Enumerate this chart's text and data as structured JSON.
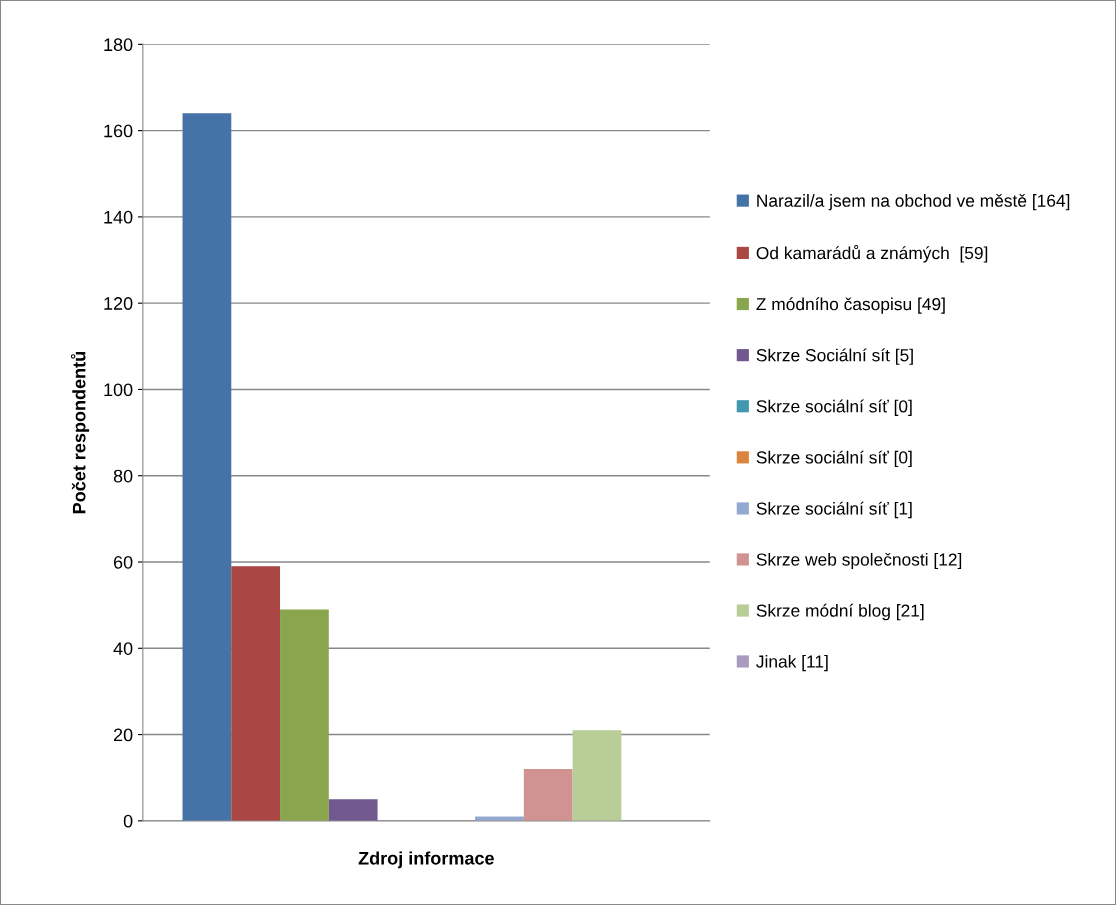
{
  "chart_data": {
    "type": "bar",
    "xlabel": "Zdroj informace",
    "ylabel": "Počet respondentů",
    "categories": [
      null
    ],
    "series": [
      {
        "name": "Narazil/a jsem na obchod ve městě [164]",
        "color": "#4572a7",
        "values": [
          164
        ]
      },
      {
        "name": "Od kamarádů a známých  [59]",
        "color": "#aa4643",
        "values": [
          59
        ]
      },
      {
        "name": "Z módního časopisu [49]",
        "color": "#89a54e",
        "values": [
          49
        ]
      },
      {
        "name": "Skrze Sociální sít [5]",
        "color": "#71588f",
        "values": [
          5
        ]
      },
      {
        "name": "Skrze sociální síť [0]",
        "color": "#4198af",
        "values": [
          0
        ]
      },
      {
        "name": "Skrze sociální síť [0]",
        "color": "#db843d",
        "values": [
          0
        ]
      },
      {
        "name": "Skrze sociální síť [1]",
        "color": "#93a9cf",
        "values": [
          1
        ]
      },
      {
        "name": "Skrze web společnosti [12]",
        "color": "#d19392",
        "values": [
          12
        ]
      },
      {
        "name": "Skrze módní blog [21]",
        "color": "#b9cd96",
        "values": [
          21
        ]
      },
      {
        "name": "Jinak [11]",
        "color": "#a99bbd",
        "values": [
          null
        ]
      }
    ],
    "ylim": [
      0,
      180
    ],
    "yticks": [
      0,
      20,
      40,
      60,
      80,
      100,
      120,
      140,
      160,
      180
    ],
    "grid": "y",
    "legend": "right",
    "tick_labels": "y"
  }
}
